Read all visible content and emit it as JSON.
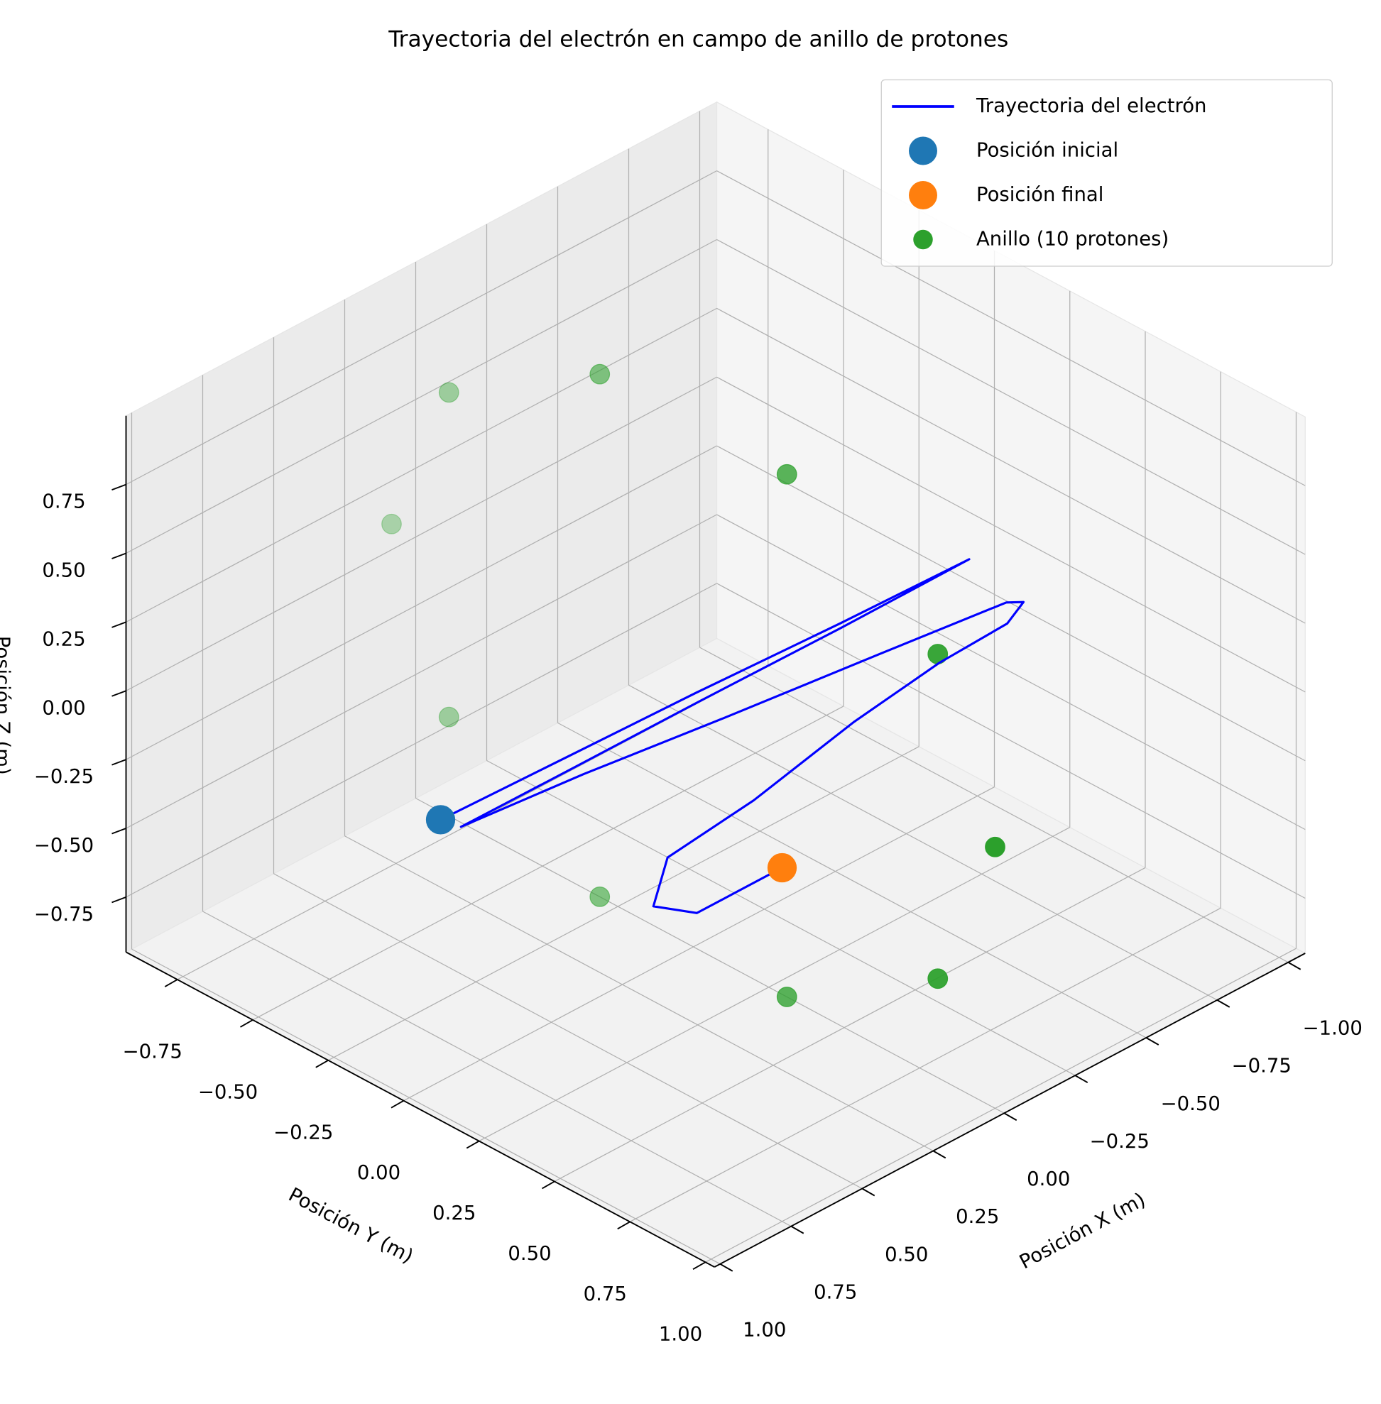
{
  "chart_data": {
    "type": "line3d",
    "title": "Trayectoria del electrón en campo de anillo de protones",
    "xlabel": "Posición X (m)",
    "ylabel": "Posición Y (m)",
    "zlabel": "Posición Z (m)",
    "xlim": [
      -1.06,
      1.02
    ],
    "ylim": [
      -0.92,
      1.03
    ],
    "zlim": [
      -0.95,
      1.0
    ],
    "xticks": [
      {
        "value": -1,
        "label": "−1.00"
      },
      {
        "value": -0.75,
        "label": "−0.75"
      },
      {
        "value": -0.5,
        "label": "−0.50"
      },
      {
        "value": -0.25,
        "label": "−0.25"
      },
      {
        "value": 0,
        "label": "0.00"
      },
      0.25,
      {
        "value": 0.5,
        "label": "0.50"
      },
      0.75,
      {
        "value": 1,
        "label": "1.00"
      }
    ],
    "yticks": [
      {
        "value": -0.75,
        "label": "−0.75"
      },
      {
        "value": -0.5,
        "label": "−0.50"
      },
      {
        "value": -0.25,
        "label": "−0.25"
      },
      {
        "value": 0,
        "label": "0.00"
      },
      0.25,
      {
        "value": 0.5,
        "label": "0.50"
      },
      0.75,
      {
        "value": 1,
        "label": "1.00"
      }
    ],
    "zticks": [
      {
        "value": -0.75,
        "label": "−0.75"
      },
      {
        "value": -0.5,
        "label": "−0.50"
      },
      {
        "value": -0.25,
        "label": "−0.25"
      },
      {
        "value": 0,
        "label": "0.00"
      },
      0.25,
      {
        "value": 0.5,
        "label": "0.50"
      },
      0.75
    ],
    "grid": true,
    "legend": "upper right",
    "series": [
      {
        "name": "Trayectoria del electrón",
        "type": "line",
        "color": "#0000ff",
        "x": [
          0.89,
          0.45,
          0.0,
          -0.5,
          -0.95,
          -0.5,
          0.0,
          0.45,
          0.85,
          0.45,
          0.0,
          -0.5,
          -0.9,
          -0.95,
          -0.85,
          -0.6,
          -0.3,
          0.0,
          0.25,
          0.3,
          0.2,
          0.05,
          -0.1
        ],
        "y": [
          0.0,
          0.005,
          0.01,
          0.015,
          0.02,
          0.022,
          0.025,
          0.028,
          0.03,
          0.06,
          0.1,
          0.15,
          0.19,
          0.2,
          0.24,
          0.25,
          0.25,
          0.2,
          0.15,
          0.15,
          0.2,
          0.2,
          0.2
        ],
        "z": [
          0.0,
          -0.01,
          -0.02,
          -0.04,
          -0.05,
          -0.05,
          -0.04,
          -0.035,
          -0.03,
          -0.04,
          -0.06,
          -0.07,
          -0.08,
          -0.1,
          -0.1,
          -0.1,
          -0.15,
          -0.3,
          -0.4,
          -0.55,
          -0.6,
          -0.6,
          -0.6
        ]
      },
      {
        "name": "Posición inicial",
        "type": "scatter",
        "color": "#1f77b4",
        "x": [
          0.89
        ],
        "y": [
          0.0
        ],
        "z": [
          0.0
        ]
      },
      {
        "name": "Posición final",
        "type": "scatter",
        "color": "#ff7f0e",
        "x": [
          -0.1
        ],
        "y": [
          0.2
        ],
        "z": [
          -0.6
        ]
      },
      {
        "name": "Anillo (10 protones)",
        "type": "scatter",
        "color": "#2ca02c",
        "x": [
          0,
          0,
          0,
          0,
          0,
          0,
          0,
          0,
          0,
          0
        ],
        "y": [
          1,
          0.81,
          0.31,
          -0.31,
          -0.81,
          -1,
          -0.81,
          -0.31,
          0.31,
          0.81
        ],
        "z": [
          0,
          0.59,
          0.95,
          0.95,
          0.59,
          0,
          -0.59,
          -0.95,
          -0.95,
          -0.59
        ]
      }
    ]
  }
}
